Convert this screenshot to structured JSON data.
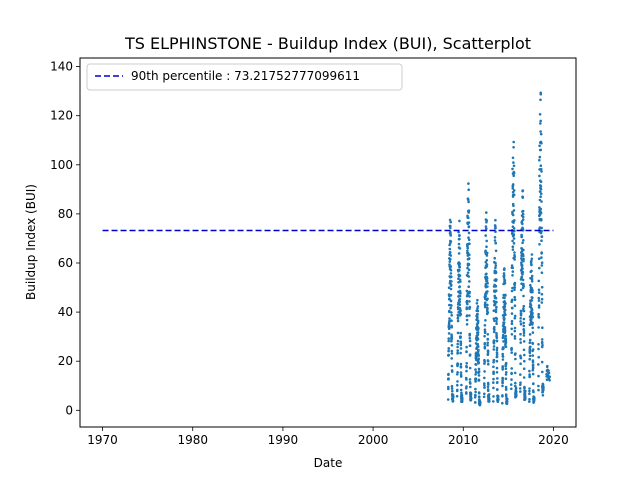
{
  "chart_data": {
    "type": "scatter",
    "title": "TS ELPHINSTONE - Buildup Index (BUI), Scatterplot",
    "xlabel": "Date",
    "ylabel": "Buildup Index (BUI)",
    "xlim": [
      1967.5,
      2022.5
    ],
    "ylim": [
      -6.8,
      143.5
    ],
    "xticks": [
      1970,
      1980,
      1990,
      2000,
      2010,
      2020
    ],
    "yticks": [
      0,
      20,
      40,
      60,
      80,
      100,
      120,
      140
    ],
    "point_color": "#1f77b4",
    "legend_position": "top-left",
    "reference_line": {
      "label": "90th percentile : 73.21752777099611",
      "y": 73.21752777099611,
      "x_range": [
        1970,
        2020
      ],
      "color": "#0000cc",
      "style": "dashed"
    },
    "series": [
      {
        "seasons": [
          {
            "year": 2008.6,
            "max": 80
          },
          {
            "year": 2009.6,
            "max": 78
          },
          {
            "year": 2010.6,
            "max": 93
          },
          {
            "year": 2011.6,
            "max": 47
          },
          {
            "year": 2012.6,
            "max": 82
          },
          {
            "year": 2013.6,
            "max": 78
          },
          {
            "year": 2014.6,
            "max": 62
          },
          {
            "year": 2015.6,
            "max": 113
          },
          {
            "year": 2016.6,
            "max": 98
          },
          {
            "year": 2017.6,
            "max": 67
          },
          {
            "year": 2018.6,
            "max": 137
          },
          {
            "year": 2019.4,
            "max": 18
          }
        ]
      }
    ]
  }
}
